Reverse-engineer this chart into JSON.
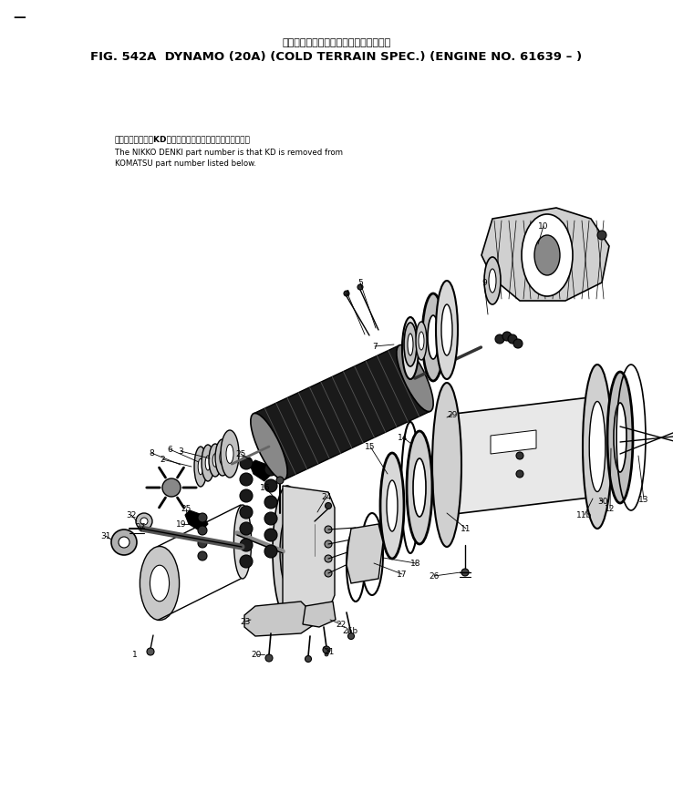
{
  "bg_color": "#ffffff",
  "fig_width": 7.38,
  "fig_height": 8.8,
  "title_jp": "ダイナモ　　　寒冷地仕様　　適用号機",
  "title_en": "FIG. 542A  DYNAMO (20A) (COLD TERRAIN SPEC.) (ENGINE NO. 61639 – )",
  "note_jp": "品番のメーカ記号KDを除いたものが日興電機の品番です。",
  "note_en1": "The NIKKO DENKI part number is that KD is removed from",
  "note_en2": "KOMATSU part number listed below.",
  "corner_mark": "—"
}
